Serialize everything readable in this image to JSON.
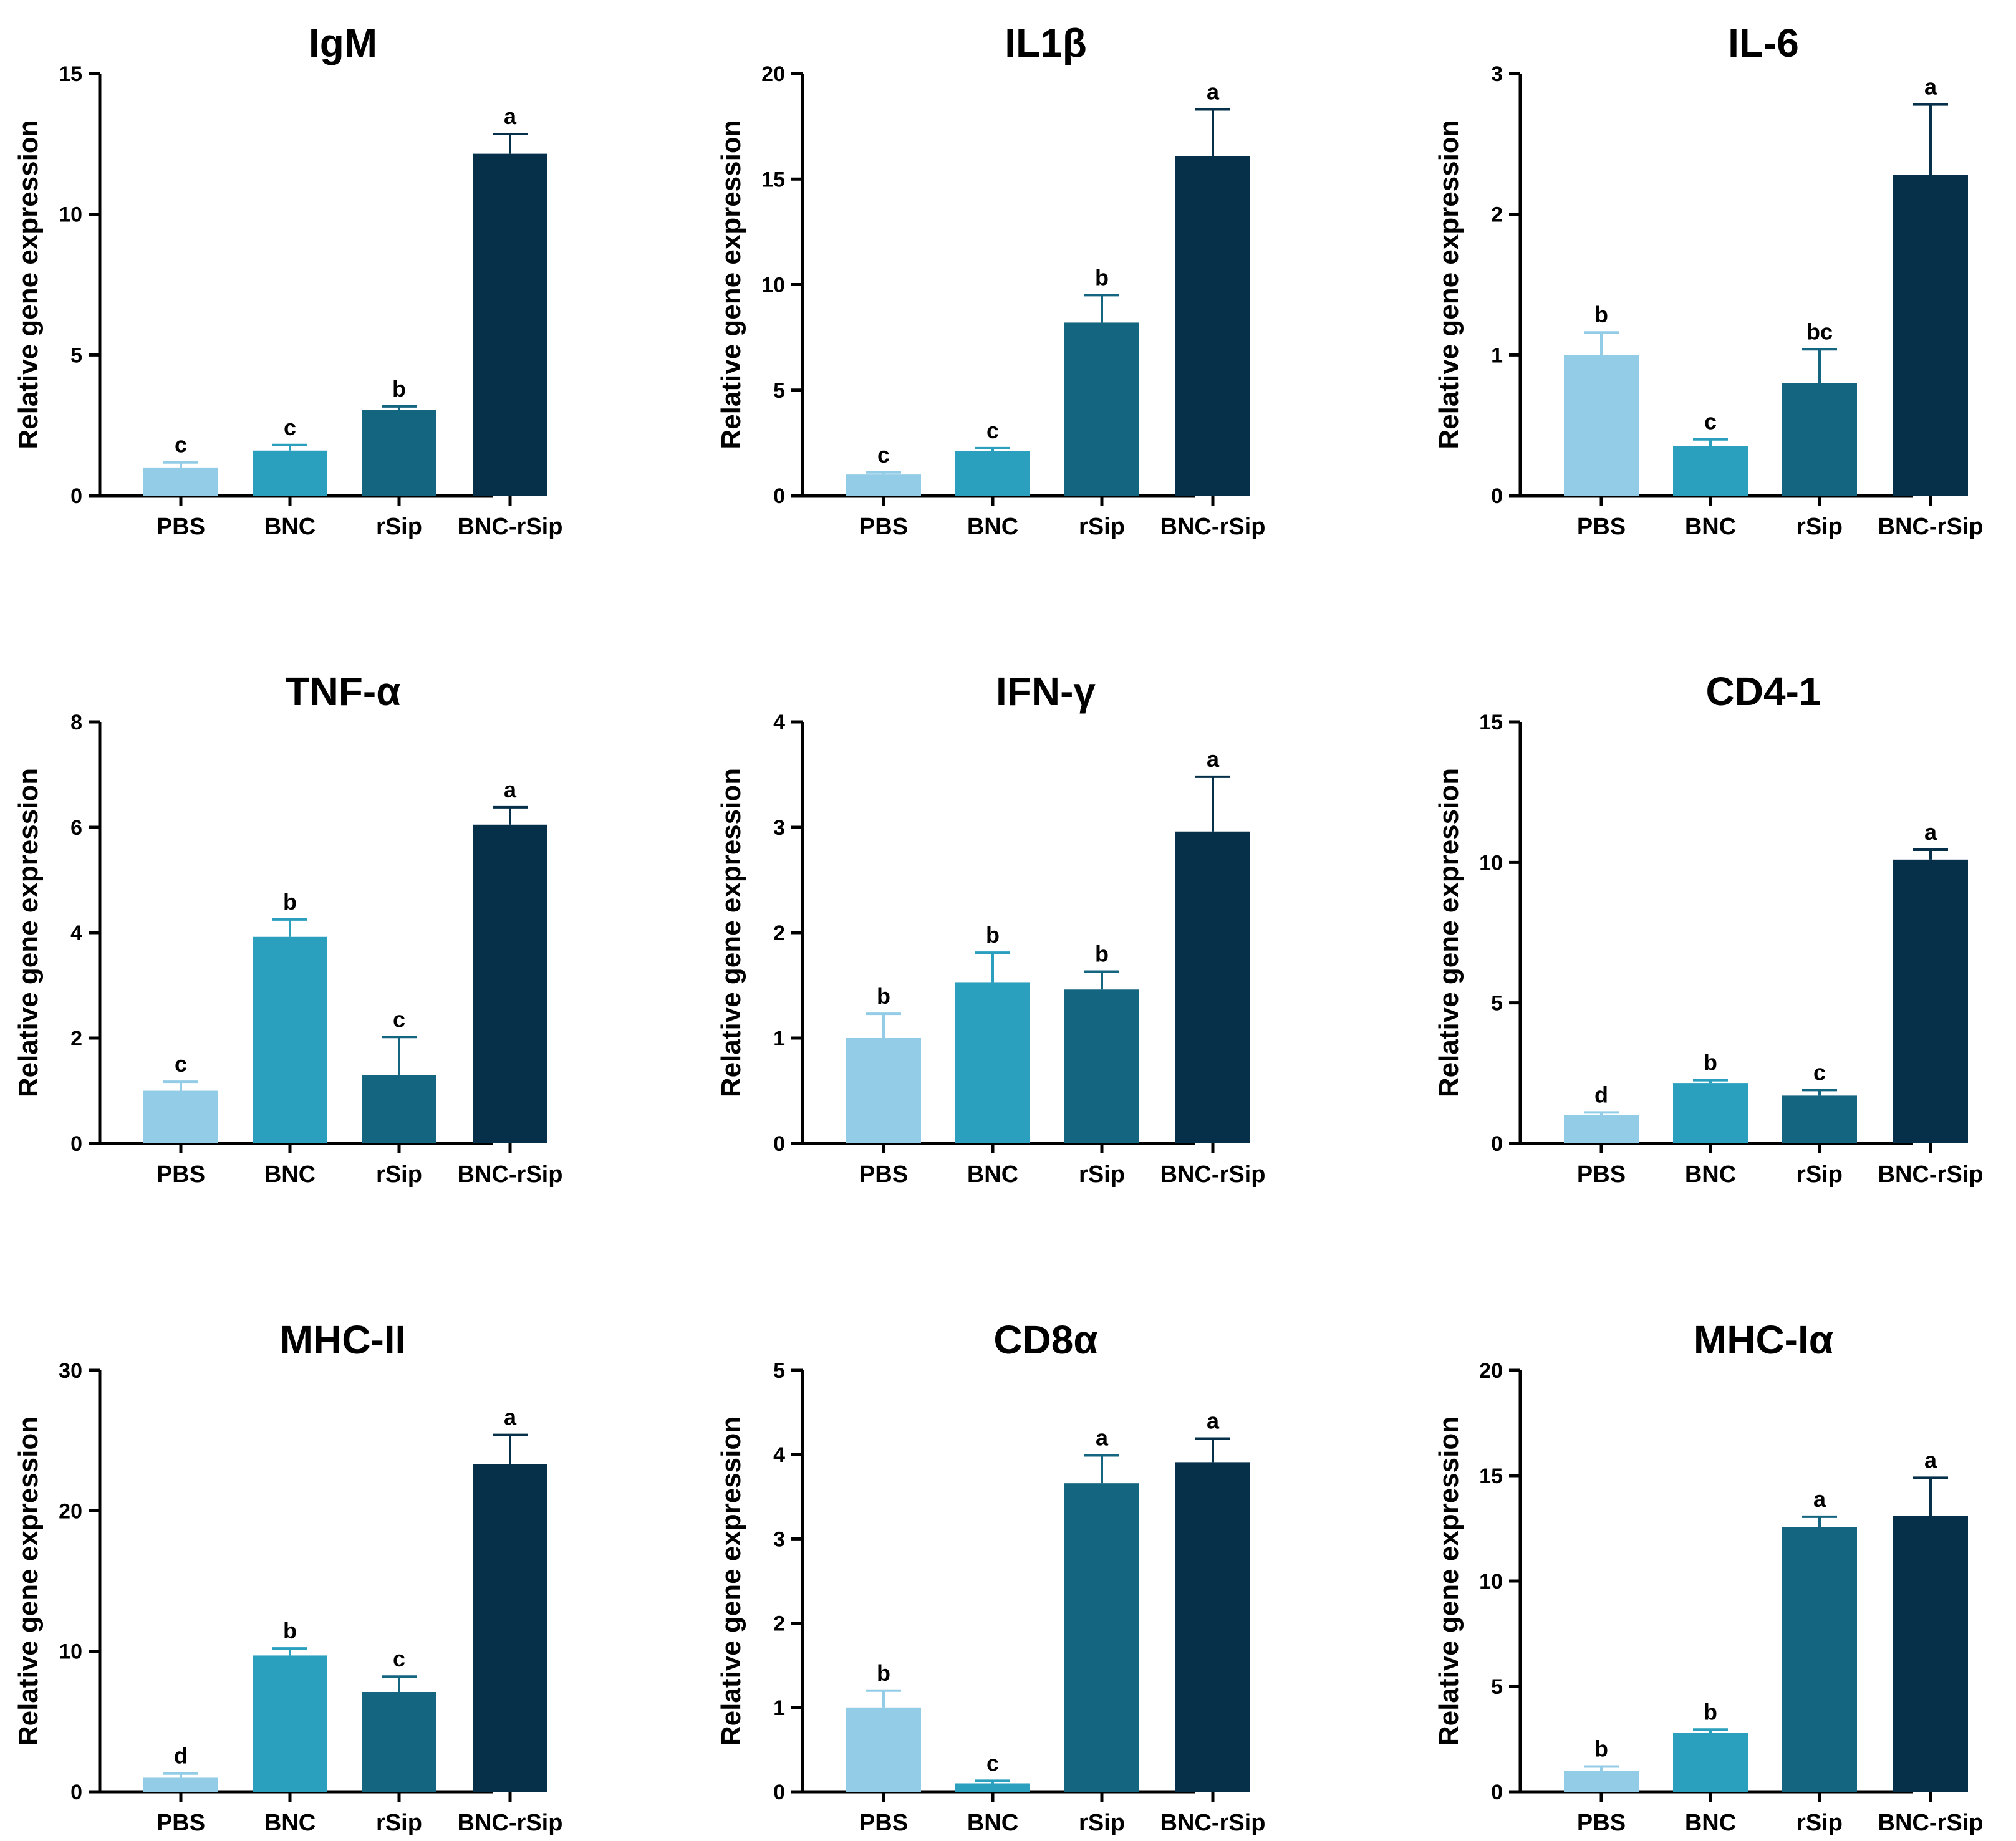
{
  "colors": [
    "#93CCE6",
    "#2A9FBE",
    "#146580",
    "#06304A"
  ],
  "chart_data": [
    {
      "type": "bar",
      "title": "IgM",
      "ylabel": "Relative gene expression",
      "ylim": [
        0,
        15
      ],
      "yticks": [
        0,
        5,
        10,
        15
      ],
      "categories": [
        "PBS",
        "BNC",
        "rSip",
        "BNC-rSip"
      ],
      "values": [
        1.0,
        1.6,
        3.05,
        12.15
      ],
      "errors": [
        0.18,
        0.2,
        0.12,
        0.7
      ],
      "labels": [
        "c",
        "c",
        "b",
        "a"
      ]
    },
    {
      "type": "bar",
      "title": "IL1β",
      "ylabel": "Relative gene expression",
      "ylim": [
        0,
        20
      ],
      "yticks": [
        0,
        5,
        10,
        15,
        20
      ],
      "categories": [
        "PBS",
        "BNC",
        "rSip",
        "BNC-rSip"
      ],
      "values": [
        1.0,
        2.1,
        8.2,
        16.1
      ],
      "errors": [
        0.1,
        0.15,
        1.3,
        2.2
      ],
      "labels": [
        "c",
        "c",
        "b",
        "a"
      ]
    },
    {
      "type": "bar",
      "title": "IL-6",
      "ylabel": "Relative gene expression",
      "ylim": [
        0,
        3
      ],
      "yticks": [
        0,
        1,
        2,
        3
      ],
      "categories": [
        "PBS",
        "BNC",
        "rSip",
        "BNC-rSip"
      ],
      "values": [
        1.0,
        0.35,
        0.8,
        2.28
      ],
      "errors": [
        0.16,
        0.05,
        0.24,
        0.5
      ],
      "labels": [
        "b",
        "c",
        "bc",
        "a"
      ]
    },
    {
      "type": "bar",
      "title": "TNF-α",
      "ylabel": "Relative gene expression",
      "ylim": [
        0,
        8
      ],
      "yticks": [
        0,
        2,
        4,
        6,
        8
      ],
      "categories": [
        "PBS",
        "BNC",
        "rSip",
        "BNC-rSip"
      ],
      "values": [
        1.0,
        3.92,
        1.3,
        6.05
      ],
      "errors": [
        0.17,
        0.33,
        0.72,
        0.33
      ],
      "labels": [
        "c",
        "b",
        "c",
        "a"
      ]
    },
    {
      "type": "bar",
      "title": "IFN-γ",
      "ylabel": "Relative gene expression",
      "ylim": [
        0,
        4
      ],
      "yticks": [
        0,
        1,
        2,
        3,
        4
      ],
      "categories": [
        "PBS",
        "BNC",
        "rSip",
        "BNC-rSip"
      ],
      "values": [
        1.0,
        1.53,
        1.46,
        2.96
      ],
      "errors": [
        0.23,
        0.28,
        0.17,
        0.52
      ],
      "labels": [
        "b",
        "b",
        "b",
        "a"
      ]
    },
    {
      "type": "bar",
      "title": "CD4-1",
      "ylabel": "Relative gene expression",
      "ylim": [
        0,
        15
      ],
      "yticks": [
        0,
        5,
        10,
        15
      ],
      "categories": [
        "PBS",
        "BNC",
        "rSip",
        "BNC-rSip"
      ],
      "values": [
        1.0,
        2.15,
        1.7,
        10.1
      ],
      "errors": [
        0.1,
        0.1,
        0.2,
        0.35
      ],
      "labels": [
        "d",
        "b",
        "c",
        "a"
      ]
    },
    {
      "type": "bar",
      "title": "MHC-II",
      "ylabel": "Relative gene expression",
      "ylim": [
        0,
        30
      ],
      "yticks": [
        0,
        10,
        20,
        30
      ],
      "categories": [
        "PBS",
        "BNC",
        "rSip",
        "BNC-rSip"
      ],
      "values": [
        1.0,
        9.7,
        7.1,
        23.3
      ],
      "errors": [
        0.3,
        0.5,
        1.1,
        2.1
      ],
      "labels": [
        "d",
        "b",
        "c",
        "a"
      ]
    },
    {
      "type": "bar",
      "title": "CD8α",
      "ylabel": "Relative gene expression",
      "ylim": [
        0,
        5
      ],
      "yticks": [
        0,
        1,
        2,
        3,
        4,
        5
      ],
      "categories": [
        "PBS",
        "BNC",
        "rSip",
        "BNC-rSip"
      ],
      "values": [
        1.0,
        0.1,
        3.66,
        3.91
      ],
      "errors": [
        0.2,
        0.03,
        0.33,
        0.28
      ],
      "labels": [
        "b",
        "c",
        "a",
        "a"
      ]
    },
    {
      "type": "bar",
      "title": "MHC-Iα",
      "ylabel": "Relative gene expression",
      "ylim": [
        0,
        20
      ],
      "yticks": [
        0,
        5,
        10,
        15,
        20
      ],
      "categories": [
        "PBS",
        "BNC",
        "rSip",
        "BNC-rSip"
      ],
      "values": [
        1.0,
        2.8,
        12.55,
        13.1
      ],
      "errors": [
        0.2,
        0.15,
        0.5,
        1.8
      ],
      "labels": [
        "b",
        "b",
        "a",
        "a"
      ]
    }
  ]
}
